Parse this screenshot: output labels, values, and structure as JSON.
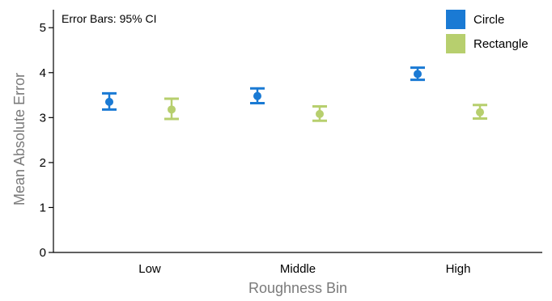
{
  "chart_data": {
    "type": "scatter",
    "note": "Error Bars: 95% CI",
    "xlabel": "Roughness Bin",
    "ylabel": "Mean Absolute Error",
    "categories": [
      "Low",
      "Middle",
      "High"
    ],
    "ylim": [
      0,
      5.4
    ],
    "yticks": [
      0,
      1,
      2,
      3,
      4,
      5
    ],
    "grid": false,
    "legend_position": "top-right",
    "series": [
      {
        "name": "Circle",
        "color": "#1a7ad4",
        "values": [
          3.35,
          3.48,
          3.97
        ],
        "ci_low": [
          3.18,
          3.32,
          3.84
        ],
        "ci_high": [
          3.54,
          3.65,
          4.11
        ]
      },
      {
        "name": "Rectangle",
        "color": "#b7cf6e",
        "values": [
          3.18,
          3.08,
          3.12
        ],
        "ci_low": [
          2.97,
          2.93,
          2.98
        ],
        "ci_high": [
          3.42,
          3.25,
          3.28
        ]
      }
    ]
  }
}
